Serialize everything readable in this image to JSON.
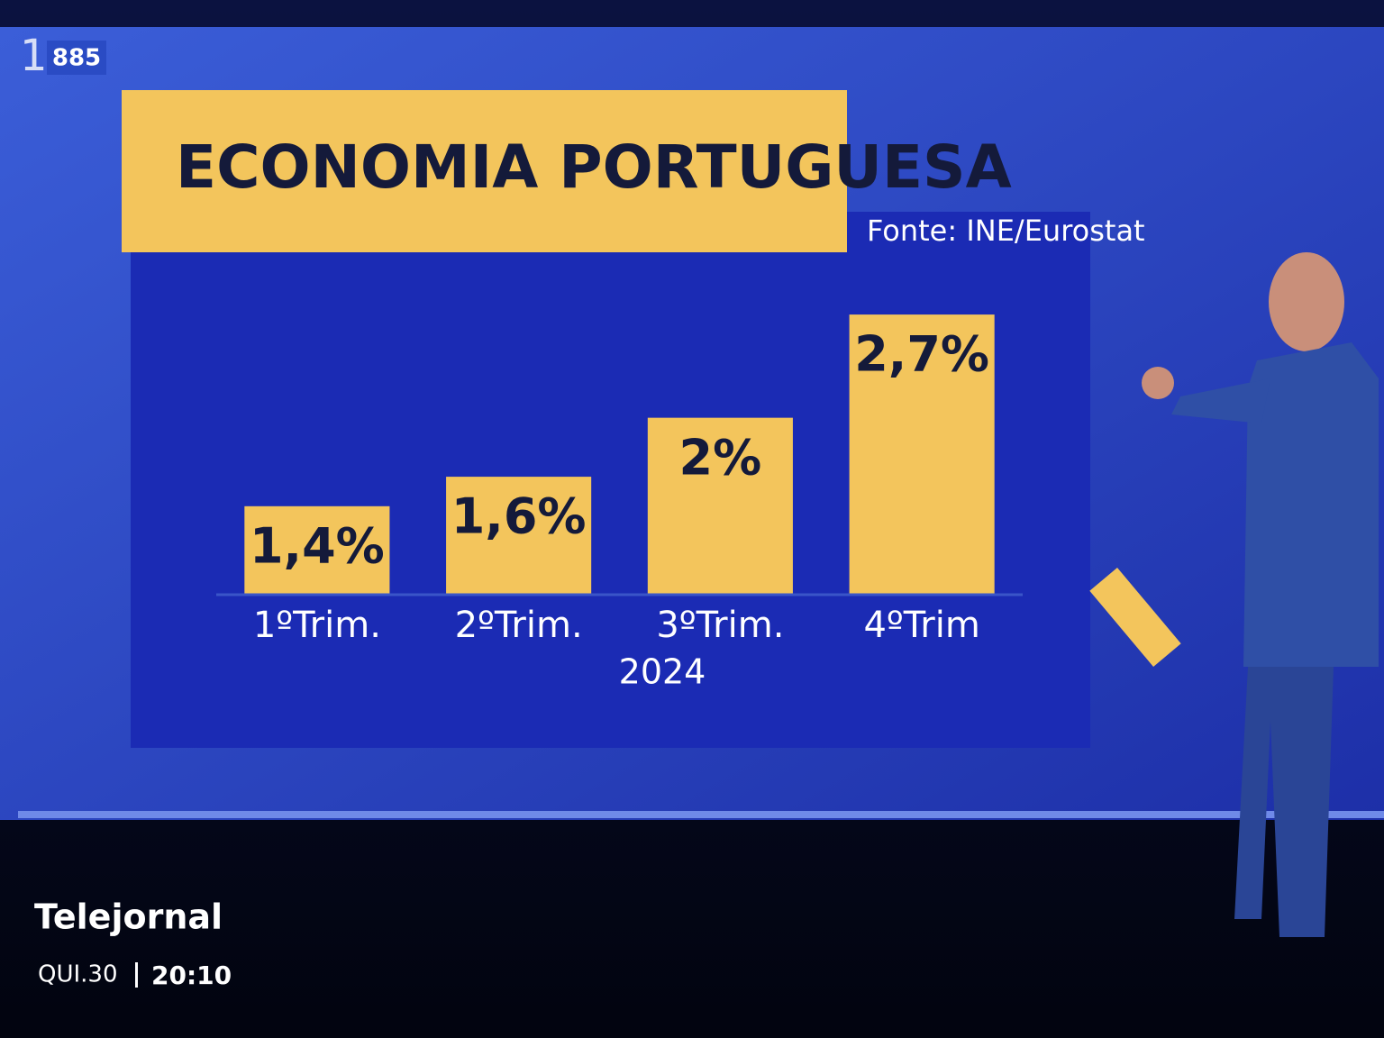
{
  "broadcast": {
    "channel": "1",
    "channel_number": "885",
    "program": "Telejornal",
    "day": "QUI.30",
    "time": "20:10"
  },
  "chart_data": {
    "type": "bar",
    "title": "ECONOMIA PORTUGUESA",
    "source": "Fonte: INE/Eurostat",
    "categories": [
      "1ºTrim.",
      "2ºTrim.",
      "3ºTrim.",
      "4ºTrim"
    ],
    "values": [
      1.4,
      1.6,
      2,
      2.7
    ],
    "value_labels": [
      "1,4%",
      "1,6%",
      "2%",
      "2,7%"
    ],
    "xlabel": "2024",
    "color": "#f3c55c",
    "ylim": [
      0.8,
      3.0
    ]
  }
}
